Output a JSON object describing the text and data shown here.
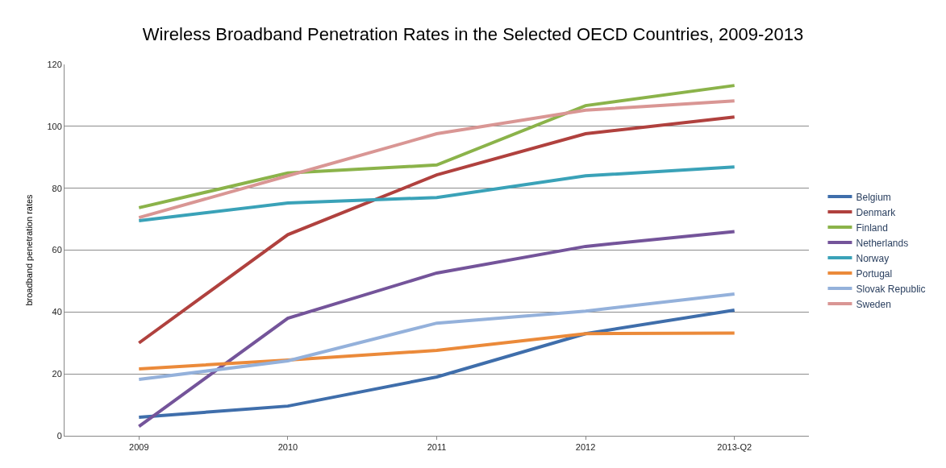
{
  "chart_data": {
    "type": "line",
    "title": "Wireless Broadband Penetration Rates in the Selected OECD Countries, 2009-2013",
    "ylabel": "broadband penetration rates",
    "categories": [
      "2009",
      "2010",
      "2011",
      "2012",
      "2013-Q2"
    ],
    "series": [
      {
        "name": "Belgium",
        "color": "#3f6eab",
        "values": [
          6,
          9.6,
          19,
          33,
          40.6
        ]
      },
      {
        "name": "Denmark",
        "color": "#b0413e",
        "values": [
          30,
          65,
          84.3,
          97.6,
          103
        ]
      },
      {
        "name": "Finland",
        "color": "#8bb34a",
        "values": [
          73.7,
          84.9,
          87.5,
          106.7,
          113.2
        ]
      },
      {
        "name": "Netherlands",
        "color": "#74549a",
        "values": [
          3,
          38,
          52.6,
          61.2,
          66
        ]
      },
      {
        "name": "Norway",
        "color": "#3aa2b8",
        "values": [
          69.5,
          75.2,
          77,
          84,
          86.9
        ]
      },
      {
        "name": "Portugal",
        "color": "#eb8a3a",
        "values": [
          21.6,
          24.5,
          27.6,
          33,
          33.2
        ]
      },
      {
        "name": "Slovak Republic",
        "color": "#94b1db",
        "values": [
          18.2,
          24.2,
          36.4,
          40.3,
          45.8
        ]
      },
      {
        "name": "Sweden",
        "color": "#d99694",
        "values": [
          70.5,
          84,
          97.6,
          105.2,
          108.2
        ]
      }
    ],
    "ylim": [
      0,
      120
    ],
    "yticks": [
      0,
      20,
      40,
      60,
      80,
      100,
      120
    ],
    "grid": "y",
    "legend": "right",
    "marker": "none",
    "line_style": "solid"
  }
}
